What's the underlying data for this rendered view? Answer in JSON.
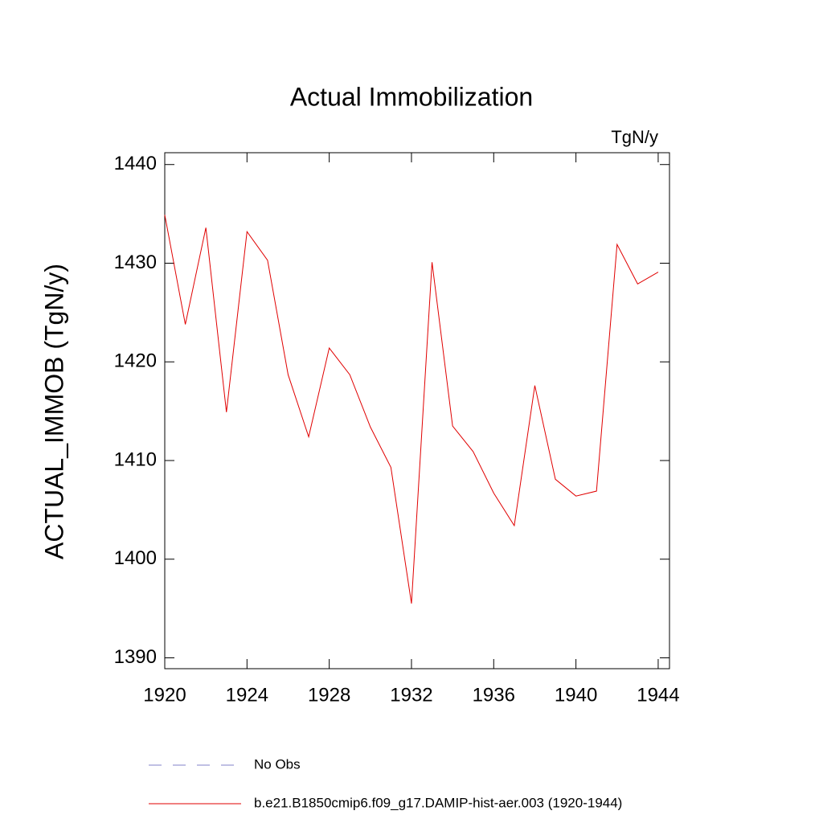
{
  "chart_data": {
    "type": "line",
    "title": "Actual Immobilization",
    "units": "TgN/y",
    "y_label": "ACTUAL_IMMOB  (TgN/y)",
    "x": [
      1920,
      1921,
      1922,
      1923,
      1924,
      1925,
      1926,
      1927,
      1928,
      1929,
      1930,
      1931,
      1932,
      1933,
      1934,
      1935,
      1936,
      1937,
      1938,
      1939,
      1940,
      1941,
      1942,
      1943,
      1944
    ],
    "series": [
      {
        "name": "b.e21.B1850cmip6.f09_g17.DAMIP-hist-aer.003 (1920-1944)",
        "color": "#e00000",
        "values": [
          1434.9,
          1423.8,
          1433.6,
          1414.9,
          1433.2,
          1430.3,
          1418.7,
          1412.4,
          1421.4,
          1418.7,
          1413.4,
          1409.3,
          1395.5,
          1430.1,
          1413.5,
          1410.9,
          1406.7,
          1403.4,
          1417.6,
          1408.1,
          1406.4,
          1406.9,
          1431.9,
          1427.9,
          1429.1
        ]
      }
    ],
    "legend_extra": [
      {
        "name": "No Obs",
        "color": "#8080c8",
        "dashed": true
      }
    ],
    "xlim": [
      1920,
      1944.55
    ],
    "ylim": [
      1388.9,
      1441.2
    ],
    "xticks": [
      1920,
      1924,
      1928,
      1932,
      1936,
      1940,
      1944
    ],
    "yticks": [
      1390,
      1400,
      1410,
      1420,
      1430,
      1440
    ]
  }
}
